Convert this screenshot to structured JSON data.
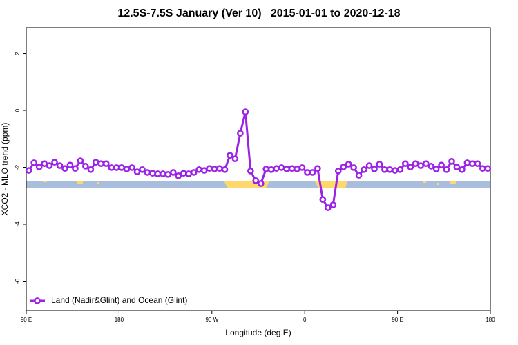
{
  "chart_data": {
    "type": "line",
    "title": "12.5S-7.5S January (Ver 10)   2015-01-01 to 2020-12-18",
    "x_label": "Longitude (deg E)",
    "y_label": "XCO2 - MLO trend (ppm)",
    "xlim": [
      90,
      540
    ],
    "ylim": [
      -7.03,
      2.91
    ],
    "xticks": [
      {
        "value": 90,
        "label": "90 E"
      },
      {
        "value": 180,
        "label": "180"
      },
      {
        "value": 270,
        "label": "90 W"
      },
      {
        "value": 360,
        "label": "0"
      },
      {
        "value": 450,
        "label": "90 E"
      },
      {
        "value": 540,
        "label": "180"
      }
    ],
    "yticks": [
      2,
      0,
      -2,
      -4,
      -6
    ],
    "legend": "bottom-left",
    "x": [
      92.5,
      97.5,
      102.5,
      107.5,
      112.5,
      117.5,
      122.5,
      127.5,
      132.5,
      137.5,
      142.5,
      147.5,
      152.5,
      157.5,
      162.5,
      167.5,
      172.5,
      177.5,
      182.5,
      187.5,
      192.5,
      197.5,
      202.5,
      207.5,
      212.5,
      217.5,
      222.5,
      227.5,
      232.5,
      237.5,
      242.5,
      247.5,
      252.5,
      257.5,
      262.5,
      267.5,
      272.5,
      277.5,
      282.5,
      287.5,
      292.5,
      297.5,
      302.5,
      307.5,
      312.5,
      317.5,
      322.5,
      327.5,
      332.5,
      337.5,
      342.5,
      347.5,
      352.5,
      357.5,
      362.5,
      367.5,
      372.5,
      377.5,
      382.5,
      387.5,
      392.5,
      397.5,
      402.5,
      407.5,
      412.5,
      417.5,
      422.5,
      427.5,
      432.5,
      437.5,
      442.5,
      447.5,
      452.5,
      457.5,
      462.5,
      467.5,
      472.5,
      477.5,
      482.5,
      487.5,
      492.5,
      497.5,
      502.5,
      507.5,
      512.5,
      517.5,
      522.5,
      527.5,
      532.5,
      537.5
    ],
    "series": [
      {
        "name": "Land (Nadir&Glint) and Ocean (Glint)",
        "color": "#9b22e6",
        "values": [
          -2.11,
          -1.84,
          -1.99,
          -1.87,
          -1.94,
          -1.82,
          -1.94,
          -2.04,
          -1.92,
          -2.04,
          -1.77,
          -1.96,
          -2.08,
          -1.82,
          -1.87,
          -1.87,
          -2.01,
          -2.01,
          -2.01,
          -2.06,
          -2.01,
          -2.16,
          -2.08,
          -2.18,
          -2.21,
          -2.23,
          -2.23,
          -2.25,
          -2.18,
          -2.3,
          -2.21,
          -2.23,
          -2.18,
          -2.08,
          -2.11,
          -2.04,
          -2.06,
          -2.04,
          -2.08,
          -1.58,
          -1.7,
          -0.8,
          -0.05,
          -2.13,
          -2.47,
          -2.57,
          -2.06,
          -2.08,
          -2.04,
          -2.01,
          -2.06,
          -2.04,
          -2.06,
          -2.01,
          -2.18,
          -2.18,
          -2.04,
          -3.13,
          -3.42,
          -3.32,
          -2.13,
          -1.99,
          -1.89,
          -2.01,
          -2.28,
          -2.08,
          -1.94,
          -2.06,
          -1.89,
          -2.08,
          -2.08,
          -2.11,
          -2.08,
          -1.87,
          -1.99,
          -1.87,
          -1.94,
          -1.87,
          -1.96,
          -2.06,
          -1.92,
          -2.08,
          -1.79,
          -1.99,
          -2.08,
          -1.84,
          -1.87,
          -1.87,
          -2.04,
          -2.04
        ]
      }
    ]
  }
}
